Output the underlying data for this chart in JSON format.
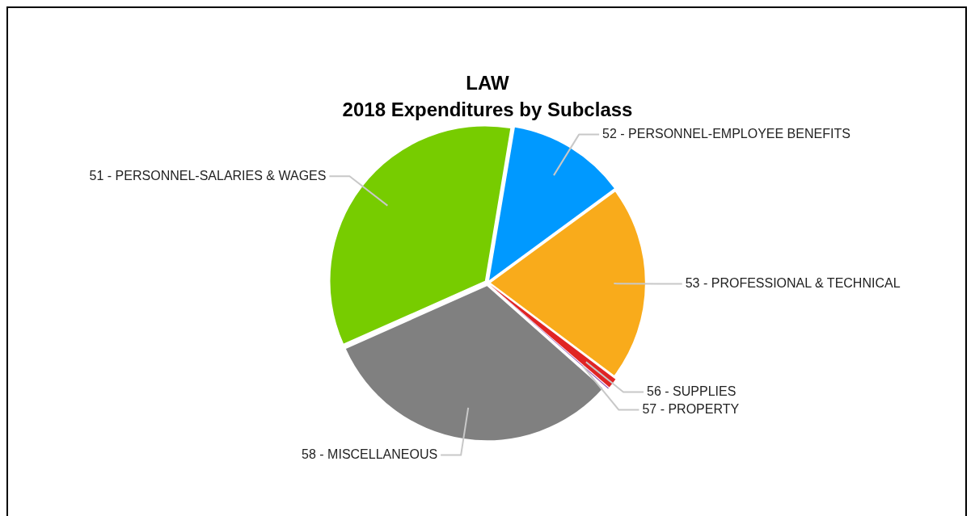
{
  "chart_data": {
    "type": "pie",
    "title": "LAW",
    "subtitle": "2018 Expenditures by Subclass",
    "categories": [
      "51 - PERSONNEL-SALARIES & WAGES",
      "52 - PERSONNEL-EMPLOYEE BENEFITS",
      "53 - PROFESSIONAL & TECHNICAL",
      "56 - SUPPLIES",
      "57 - PROPERTY",
      "58 - MISCELLANEOUS"
    ],
    "values": [
      34.3,
      12.3,
      20.3,
      1.1,
      0.2,
      31.8
    ],
    "colors": [
      "#77cc00",
      "#0099ff",
      "#f9ab1b",
      "#e02424",
      "#9b59b6",
      "#808080"
    ],
    "legend": false
  }
}
